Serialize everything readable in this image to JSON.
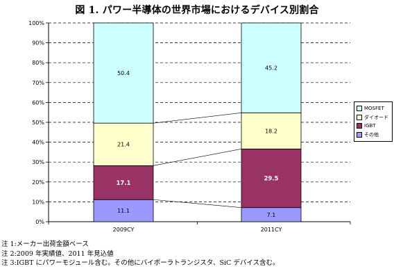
{
  "title": "図 1. パワー半導体の世界市場におけるデバイス別割合",
  "chart_data": {
    "type": "bar",
    "stacked": true,
    "categories": [
      "2009CY",
      "2011CY"
    ],
    "series": [
      {
        "name": "その他",
        "values": [
          11.1,
          7.1
        ],
        "color": "#9999ff",
        "label_color": "#000000",
        "bold": false
      },
      {
        "name": "IGBT",
        "values": [
          17.1,
          29.5
        ],
        "color": "#993366",
        "label_color": "#ffffff",
        "bold": true
      },
      {
        "name": "ダイオード",
        "values": [
          21.4,
          18.2
        ],
        "color": "#ffffcc",
        "label_color": "#000000",
        "bold": false
      },
      {
        "name": "MOSFET",
        "values": [
          50.4,
          45.2
        ],
        "color": "#ccffff",
        "label_color": "#000000",
        "bold": false
      }
    ],
    "legend_order": [
      "MOSFET",
      "ダイオード",
      "IGBT",
      "その他"
    ],
    "y_ticks": [
      "0%",
      "10%",
      "20%",
      "30%",
      "40%",
      "50%",
      "60%",
      "70%",
      "80%",
      "90%",
      "100%"
    ],
    "ylim": [
      0,
      100
    ],
    "grid": true,
    "legend_position": "right",
    "series_lines": true
  },
  "notes": [
    "注 1:メーカー出荷金額ベース",
    "注 2:2009 年実績値、2011 年見込値",
    "注 3:IGBT にパワーモジュール含む。その他にバイポーラトランジスタ、SiC デバイス含む。"
  ]
}
